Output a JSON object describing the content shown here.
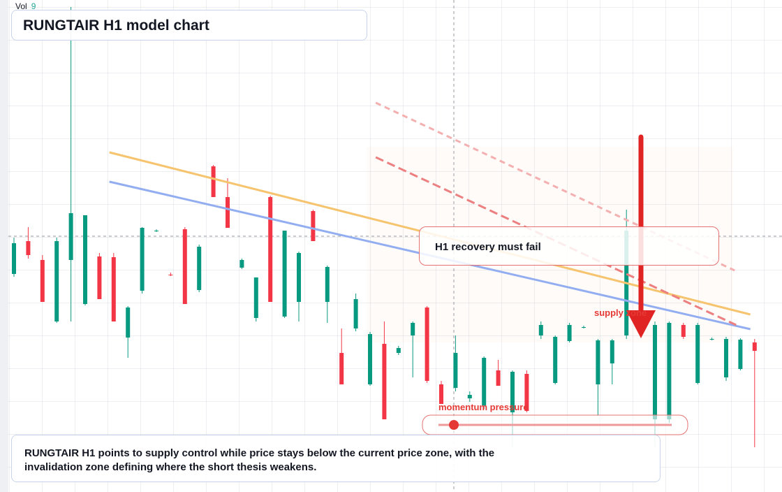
{
  "chart_data": {
    "type": "candlestick",
    "title": "RUNGTAIR H1 model chart",
    "volume_label": "Vol",
    "volume": 9,
    "annotations": [
      "H1 recovery must fail",
      "supply zone",
      "momentum pressure"
    ],
    "description": "RUNGTAIR H1 points to supply control while price stays below the current price zone, with the invalidation zone defining where the short thesis weakens.",
    "ylim": [
      0,
      704
    ],
    "up_color": "#089981",
    "down_color": "#f23645",
    "candles": [
      [
        312,
        364,
        308,
        356
      ],
      [
        359,
        379,
        334,
        339
      ],
      [
        332,
        339,
        272,
        272
      ],
      [
        244,
        364,
        242,
        359
      ],
      [
        332,
        694,
        244,
        399
      ],
      [
        269,
        396,
        267,
        396
      ],
      [
        337,
        342,
        276,
        276
      ],
      [
        336,
        342,
        244,
        244
      ],
      [
        221,
        266,
        192,
        264
      ],
      [
        288,
        379,
        284,
        378
      ],
      [
        374,
        376,
        372,
        374
      ],
      [
        311,
        314,
        309,
        310
      ],
      [
        376,
        379,
        269,
        269
      ],
      [
        289,
        354,
        286,
        351
      ],
      [
        466,
        468,
        422,
        422
      ],
      [
        422,
        449,
        378,
        378
      ],
      [
        321,
        334,
        319,
        332
      ],
      [
        249,
        307,
        244,
        307
      ],
      [
        422,
        424,
        272,
        272
      ],
      [
        251,
        374,
        249,
        374
      ],
      [
        272,
        344,
        244,
        342
      ],
      [
        402,
        404,
        359,
        359
      ],
      [
        272,
        324,
        242,
        322
      ],
      [
        199,
        234,
        154,
        154
      ],
      [
        234,
        284,
        230,
        276
      ],
      [
        154,
        229,
        152,
        226
      ],
      [
        212,
        244,
        104,
        104
      ],
      [
        199,
        209,
        196,
        206
      ],
      [
        224,
        244,
        164,
        242
      ],
      [
        264,
        266,
        156,
        159
      ],
      [
        154,
        159,
        126,
        126
      ],
      [
        149,
        224,
        144,
        199
      ],
      [
        134,
        144,
        129,
        139
      ],
      [
        124,
        194,
        119,
        192
      ],
      [
        174,
        189,
        152,
        152
      ],
      [
        114,
        174,
        64,
        172
      ],
      [
        169,
        174,
        114,
        116
      ],
      [
        224,
        244,
        219,
        239
      ],
      [
        156,
        224,
        154,
        222
      ],
      [
        216,
        242,
        214,
        239
      ],
      [
        236,
        238,
        234,
        236
      ],
      [
        154,
        219,
        109,
        217
      ],
      [
        184,
        219,
        154,
        217
      ],
      [
        224,
        404,
        219,
        374
      ],
      [
        374,
        376,
        312,
        312
      ],
      [
        104,
        244,
        64,
        239
      ],
      [
        104,
        244,
        99,
        242
      ],
      [
        239,
        242,
        219,
        222
      ],
      [
        156,
        242,
        154,
        239
      ],
      [
        219,
        221,
        217,
        219
      ],
      [
        164,
        222,
        159,
        219
      ],
      [
        176,
        220,
        174,
        218
      ],
      [
        214,
        219,
        64,
        202
      ]
    ],
    "lines": [
      {
        "x": [
          6.7,
          51.7
        ],
        "values": [
          486,
          254
        ],
        "color": "#f6c46e",
        "dashed": false
      },
      {
        "x": [
          6.7,
          51.7
        ],
        "values": [
          444,
          233
        ],
        "color": "#93aef0",
        "dashed": false
      },
      {
        "x": [
          25.4,
          50.7
        ],
        "values": [
          479,
          239
        ],
        "color": "#ec7f7f",
        "dashed": true
      },
      {
        "x": [
          25.4,
          50.6
        ],
        "values": [
          557,
          317
        ],
        "color": "#f4b0b0",
        "dashed": true
      }
    ]
  }
}
